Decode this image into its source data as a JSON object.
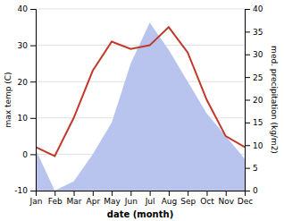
{
  "chart_data": {
    "type": "line",
    "xlabel": "date (month)",
    "ylabel": "max temp (C)",
    "y2label": "med. precipitation (kg/m2)",
    "categories": [
      "Jan",
      "Feb",
      "Mar",
      "Apr",
      "May",
      "Jun",
      "Jul",
      "Aug",
      "Sep",
      "Oct",
      "Nov",
      "Dec"
    ],
    "series": [
      {
        "type": "area",
        "axis": "y2",
        "color": "#b8c4ee",
        "values": [
          9,
          0,
          2,
          8,
          15,
          28,
          37,
          31,
          24,
          17,
          12,
          7
        ]
      },
      {
        "type": "line",
        "color": "#c0392b",
        "values": [
          2,
          -0.5,
          10,
          23,
          31,
          29,
          30,
          35,
          28,
          15,
          5,
          2
        ]
      }
    ],
    "ylim": [
      -10,
      40
    ],
    "yticks": [
      -10,
      0,
      10,
      20,
      30,
      40
    ],
    "y2lim": [
      0,
      40
    ],
    "y2ticks": [
      0,
      5,
      10,
      15,
      20,
      25,
      30,
      35,
      40
    ],
    "grid": true
  }
}
